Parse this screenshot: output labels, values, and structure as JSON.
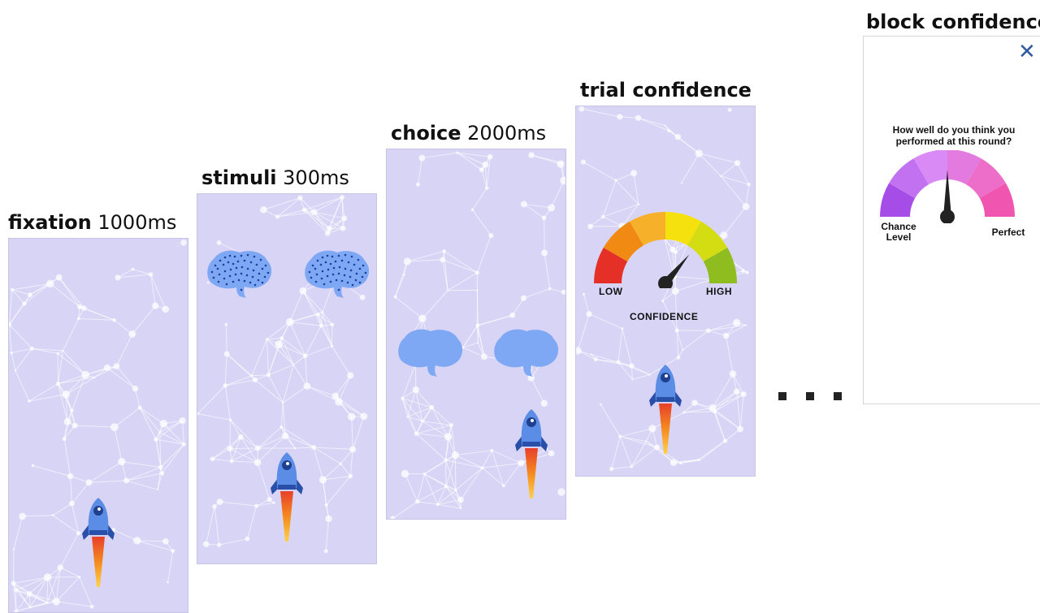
{
  "steps": [
    {
      "name_bold": "fixation",
      "duration": " 1000ms"
    },
    {
      "name_bold": "stimuli",
      "duration": " 300ms"
    },
    {
      "name_bold": "choice",
      "duration": " 2000ms"
    },
    {
      "name_bold": "trial confidence",
      "duration": ""
    },
    {
      "name_bold": "block confidence",
      "duration": ""
    }
  ],
  "trial_gauge": {
    "low_label": "LOW",
    "high_label": "HIGH",
    "caption": "CONFIDENCE",
    "needle_level": 0.72,
    "colors": [
      "#e53027",
      "#f08a12",
      "#f7b02a",
      "#f5e10e",
      "#d4dc12",
      "#8fbc1e"
    ]
  },
  "block_gauge": {
    "question": "How well do you think you performed at this round?",
    "left_label": "Chance Level",
    "right_label": "Perfect",
    "needle_level": 0.5,
    "colors": [
      "#a64de8",
      "#c271f0",
      "#d98af5",
      "#e27ae0",
      "#ec6ec8",
      "#f056b0"
    ]
  },
  "icons": {
    "close": "close-icon",
    "rocket": "rocket-icon",
    "brain": "brain-icon",
    "ellipsis": "ellipsis-icon"
  },
  "colors": {
    "panel_bg": "#d8d4f6",
    "rocket_body": "#5b8de6",
    "brain_fill": "#7fa8f4",
    "close_icon": "#2f5aa0"
  }
}
